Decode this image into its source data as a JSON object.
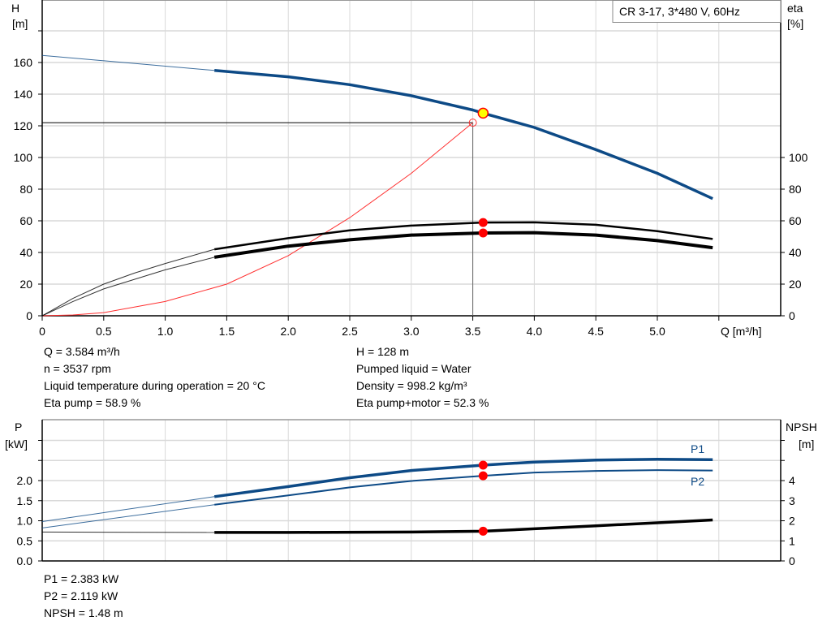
{
  "chart_data": [
    {
      "type": "line",
      "title": "CR 3-17, 3*480 V, 60Hz",
      "xlabel": "Q [m³/h]",
      "ylabel_left": [
        "H",
        "[m]"
      ],
      "ylabel_right": [
        "eta",
        "[%]"
      ],
      "xlim": [
        0,
        5.6
      ],
      "ylim_left": [
        0,
        180
      ],
      "ylim_right": [
        0,
        180
      ],
      "x_ticks": [
        "0",
        "0.5",
        "1.0",
        "1.5",
        "2.0",
        "2.5",
        "3.0",
        "3.5",
        "4.0",
        "4.5",
        "5.0"
      ],
      "y_ticks_left": [
        "0",
        "20",
        "40",
        "60",
        "80",
        "100",
        "120",
        "140",
        "160"
      ],
      "y_ticks_right": [
        "0",
        "20",
        "40",
        "60",
        "80",
        "100"
      ],
      "grid": true,
      "series": [
        {
          "key": "H",
          "axis": "left",
          "color": "#0d4a86",
          "x": [
            0,
            1.4,
            2.0,
            2.5,
            3.0,
            3.5,
            3.584,
            4.0,
            4.5,
            5.0,
            5.45
          ],
          "y": [
            164.5,
            155,
            151,
            146,
            139,
            130,
            128,
            119,
            105,
            90,
            74
          ]
        },
        {
          "key": "eta_pump",
          "axis": "right",
          "color": "#000000",
          "x": [
            0,
            0.25,
            0.5,
            0.75,
            1.0,
            1.4,
            2.0,
            2.5,
            3.0,
            3.584,
            4.0,
            4.5,
            5.0,
            5.45
          ],
          "y": [
            0,
            11,
            20,
            27,
            33,
            42,
            49,
            54,
            57,
            58.9,
            59,
            57.5,
            53.5,
            48.5
          ]
        },
        {
          "key": "eta_pump_motor",
          "axis": "right",
          "color": "#000000",
          "x": [
            0,
            0.25,
            0.5,
            0.75,
            1.0,
            1.4,
            2.0,
            2.5,
            3.0,
            3.584,
            4.0,
            4.5,
            5.0,
            5.45
          ],
          "y": [
            0,
            9,
            17,
            23,
            29,
            37,
            44,
            48,
            51,
            52.3,
            52.5,
            51,
            47.5,
            43
          ]
        },
        {
          "key": "system",
          "axis": "left",
          "color": "#ff3030",
          "x": [
            0,
            0.25,
            0.5,
            1.0,
            1.5,
            2.0,
            2.5,
            3.0,
            3.5
          ],
          "y": [
            0,
            0.5,
            2,
            9,
            20,
            38,
            62,
            90,
            122
          ]
        }
      ],
      "duty_point": {
        "Q": 3.584,
        "H": 128,
        "eta_pump": 58.9,
        "eta_pump_motor": 52.3
      },
      "required_point": {
        "Q": 3.5,
        "H": 122
      }
    },
    {
      "type": "line",
      "xlim": [
        0,
        5.6
      ],
      "ylabel_left": [
        "P",
        "[kW]"
      ],
      "ylabel_right": [
        "NPSH",
        "[m]"
      ],
      "ylim_left": [
        0,
        3.5
      ],
      "ylim_right": [
        0,
        7
      ],
      "y_ticks_left": [
        "0.0",
        "0.5",
        "1.0",
        "1.5",
        "2.0"
      ],
      "y_ticks_right": [
        "0",
        "1",
        "2",
        "3",
        "4"
      ],
      "grid": true,
      "series": [
        {
          "name": "P1",
          "axis": "left",
          "color": "#0d4a86",
          "x": [
            0,
            1.4,
            2.0,
            2.5,
            3.0,
            3.584,
            4.0,
            4.5,
            5.0,
            5.45
          ],
          "y": [
            0.98,
            1.6,
            1.85,
            2.07,
            2.25,
            2.383,
            2.46,
            2.51,
            2.53,
            2.52
          ]
        },
        {
          "name": "P2",
          "axis": "left",
          "color": "#0d4a86",
          "x": [
            0,
            1.4,
            2.0,
            2.5,
            3.0,
            3.584,
            4.0,
            4.5,
            5.0,
            5.45
          ],
          "y": [
            0.82,
            1.4,
            1.63,
            1.83,
            1.99,
            2.119,
            2.2,
            2.24,
            2.26,
            2.25
          ]
        },
        {
          "key": "NPSH",
          "axis": "right",
          "color": "#000000",
          "x": [
            0,
            1.4,
            2.0,
            3.0,
            3.584,
            4.0,
            4.5,
            5.0,
            5.45
          ],
          "y": [
            1.44,
            1.42,
            1.42,
            1.44,
            1.48,
            1.6,
            1.75,
            1.9,
            2.04
          ]
        }
      ],
      "duty_point": {
        "Q": 3.584,
        "P1": 2.383,
        "P2": 2.119,
        "NPSH": 1.48
      }
    }
  ],
  "info_left": [
    "Q = 3.584 m³/h",
    "n = 3537 rpm",
    "Liquid temperature during operation = 20 °C",
    "Eta pump = 58.9 %"
  ],
  "info_right": [
    "H = 128 m",
    "Pumped liquid = Water",
    "Density = 998.2 kg/m³",
    "Eta pump+motor = 52.3 %"
  ],
  "info_bottom": [
    "P1 = 2.383 kW",
    "P2 = 2.119 kW",
    "NPSH = 1.48 m"
  ],
  "colors": {
    "head": "#0d4a86",
    "duty_fill": "#ffff00",
    "marker": "#ff0000",
    "grid": "#d9d9d9"
  }
}
